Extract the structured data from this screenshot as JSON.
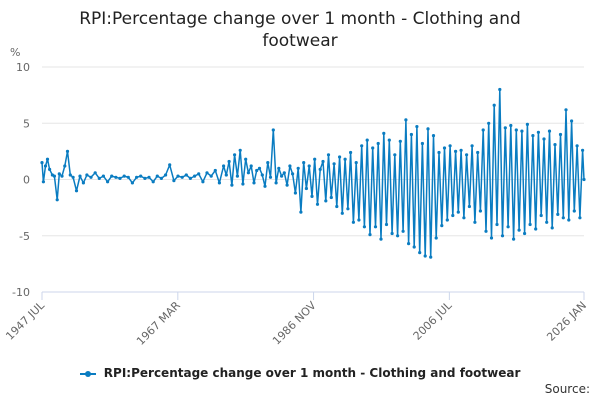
{
  "title_line1": "RPI:Percentage change over 1 month - Clothing and",
  "title_line2": "footwear",
  "source_label": "Source:",
  "colors": {
    "series": "#0a7cc1",
    "grid": "#e6e6e6",
    "axis": "#ccd6eb",
    "text": "#666666"
  },
  "chart_data": {
    "type": "line",
    "title": "RPI:Percentage change over 1 month - Clothing and footwear",
    "ylabel": "%",
    "xlabel": "",
    "ylim": [
      -10,
      10
    ],
    "yticks": [
      10,
      5,
      0,
      -5,
      -10
    ],
    "xlim": [
      1947.5,
      2026.0
    ],
    "xticks": [
      {
        "label": "1947 JUL",
        "value": 1947.5
      },
      {
        "label": "1967 MAR",
        "value": 1967.17
      },
      {
        "label": "1986 NOV",
        "value": 1986.83
      },
      {
        "label": "2006 JUL",
        "value": 2006.5
      },
      {
        "label": "2026 JAN",
        "value": 2026.0
      }
    ],
    "grid": true,
    "legend_position": "bottom",
    "series": [
      {
        "name": "RPI:Percentage change over 1 month - Clothing and footwear",
        "x": [
          1947.5,
          1947.7,
          1948.0,
          1948.3,
          1948.6,
          1949.0,
          1949.3,
          1949.7,
          1950.0,
          1950.4,
          1950.8,
          1951.2,
          1951.6,
          1952.0,
          1952.5,
          1953.0,
          1953.5,
          1954.0,
          1954.6,
          1955.2,
          1955.8,
          1956.4,
          1957.0,
          1957.6,
          1958.2,
          1958.8,
          1959.4,
          1960.0,
          1960.6,
          1961.2,
          1961.8,
          1962.4,
          1963.0,
          1963.6,
          1964.2,
          1964.8,
          1965.4,
          1966.0,
          1966.6,
          1967.2,
          1967.8,
          1968.4,
          1969.0,
          1969.6,
          1970.2,
          1970.8,
          1971.4,
          1972.0,
          1972.6,
          1973.2,
          1973.8,
          1974.2,
          1974.6,
          1975.0,
          1975.4,
          1975.8,
          1976.2,
          1976.6,
          1977.0,
          1977.4,
          1977.8,
          1978.2,
          1978.6,
          1979.0,
          1979.4,
          1979.8,
          1980.2,
          1980.6,
          1981.0,
          1981.4,
          1981.8,
          1982.2,
          1982.6,
          1983.0,
          1983.4,
          1983.8,
          1984.2,
          1984.6,
          1985.0,
          1985.4,
          1985.8,
          1986.2,
          1986.6,
          1987.0,
          1987.4,
          1987.8,
          1988.2,
          1988.6,
          1989.0,
          1989.4,
          1989.8,
          1990.2,
          1990.6,
          1991.0,
          1991.4,
          1991.8,
          1992.2,
          1992.6,
          1993.0,
          1993.4,
          1993.8,
          1994.2,
          1994.6,
          1995.0,
          1995.4,
          1995.8,
          1996.2,
          1996.6,
          1997.0,
          1997.4,
          1997.8,
          1998.2,
          1998.6,
          1999.0,
          1999.4,
          1999.8,
          2000.2,
          2000.6,
          2001.0,
          2001.4,
          2001.8,
          2002.2,
          2002.6,
          2003.0,
          2003.4,
          2003.8,
          2004.2,
          2004.6,
          2005.0,
          2005.4,
          2005.8,
          2006.2,
          2006.6,
          2007.0,
          2007.4,
          2007.8,
          2008.2,
          2008.6,
          2009.0,
          2009.4,
          2009.8,
          2010.2,
          2010.6,
          2011.0,
          2011.4,
          2011.8,
          2012.2,
          2012.6,
          2013.0,
          2013.4,
          2013.8,
          2014.2,
          2014.6,
          2015.0,
          2015.4,
          2015.8,
          2016.2,
          2016.6,
          2017.0,
          2017.4,
          2017.8,
          2018.2,
          2018.6,
          2019.0,
          2019.4,
          2019.8,
          2020.2,
          2020.6,
          2021.0,
          2021.4,
          2021.8,
          2022.2,
          2022.6,
          2023.0,
          2023.4,
          2023.8,
          2024.2,
          2024.6,
          2025.0,
          2025.4,
          2025.8,
          2026.0
        ],
        "values": [
          1.5,
          -0.2,
          1.2,
          1.8,
          0.9,
          0.4,
          0.3,
          -1.8,
          0.5,
          0.3,
          1.2,
          2.5,
          0.4,
          0.2,
          -1.0,
          0.3,
          -0.3,
          0.4,
          0.2,
          0.6,
          0.1,
          0.3,
          -0.2,
          0.3,
          0.2,
          0.1,
          0.3,
          0.2,
          -0.3,
          0.2,
          0.3,
          0.1,
          0.2,
          -0.2,
          0.3,
          0.1,
          0.4,
          1.3,
          -0.1,
          0.3,
          0.2,
          0.4,
          0.1,
          0.3,
          0.5,
          -0.2,
          0.6,
          0.3,
          0.8,
          -0.3,
          1.2,
          0.4,
          1.6,
          -0.5,
          2.2,
          0.3,
          2.6,
          -0.4,
          1.8,
          0.6,
          1.2,
          -0.3,
          0.8,
          1.0,
          0.4,
          -0.6,
          1.5,
          0.2,
          4.4,
          -0.3,
          1.0,
          0.3,
          0.6,
          -0.5,
          1.2,
          0.5,
          -1.2,
          1.0,
          -2.9,
          1.5,
          -0.8,
          1.2,
          -1.5,
          1.8,
          -2.2,
          0.9,
          1.6,
          -1.9,
          2.2,
          -1.6,
          1.4,
          -2.4,
          2.0,
          -3.0,
          1.8,
          -2.6,
          2.4,
          -3.8,
          1.5,
          -3.6,
          3.0,
          -4.2,
          3.5,
          -4.9,
          2.8,
          -4.2,
          3.2,
          -5.3,
          4.1,
          -4.0,
          3.5,
          -4.8,
          2.2,
          -5.0,
          3.4,
          -4.6,
          5.3,
          -5.7,
          4.0,
          -6.0,
          4.7,
          -6.5,
          3.2,
          -6.8,
          4.5,
          -6.9,
          3.9,
          -5.2,
          2.4,
          -4.1,
          2.8,
          -3.6,
          3.0,
          -3.2,
          2.5,
          -2.9,
          2.6,
          -3.4,
          2.2,
          -2.4,
          3.0,
          -3.8,
          2.4,
          -2.8,
          4.4,
          -4.6,
          5.0,
          -5.2,
          6.6,
          -4.0,
          8.0,
          -5.0,
          4.6,
          -4.2,
          4.8,
          -5.3,
          4.4,
          -4.5,
          4.3,
          -4.8,
          4.9,
          -4.0,
          3.9,
          -4.4,
          4.2,
          -3.2,
          3.6,
          -3.8,
          4.3,
          -4.3,
          3.1,
          -3.1,
          4.0,
          -3.4,
          6.2,
          -3.6,
          5.2,
          -2.8,
          3.0,
          -3.4,
          2.6,
          0.0
        ]
      }
    ]
  }
}
